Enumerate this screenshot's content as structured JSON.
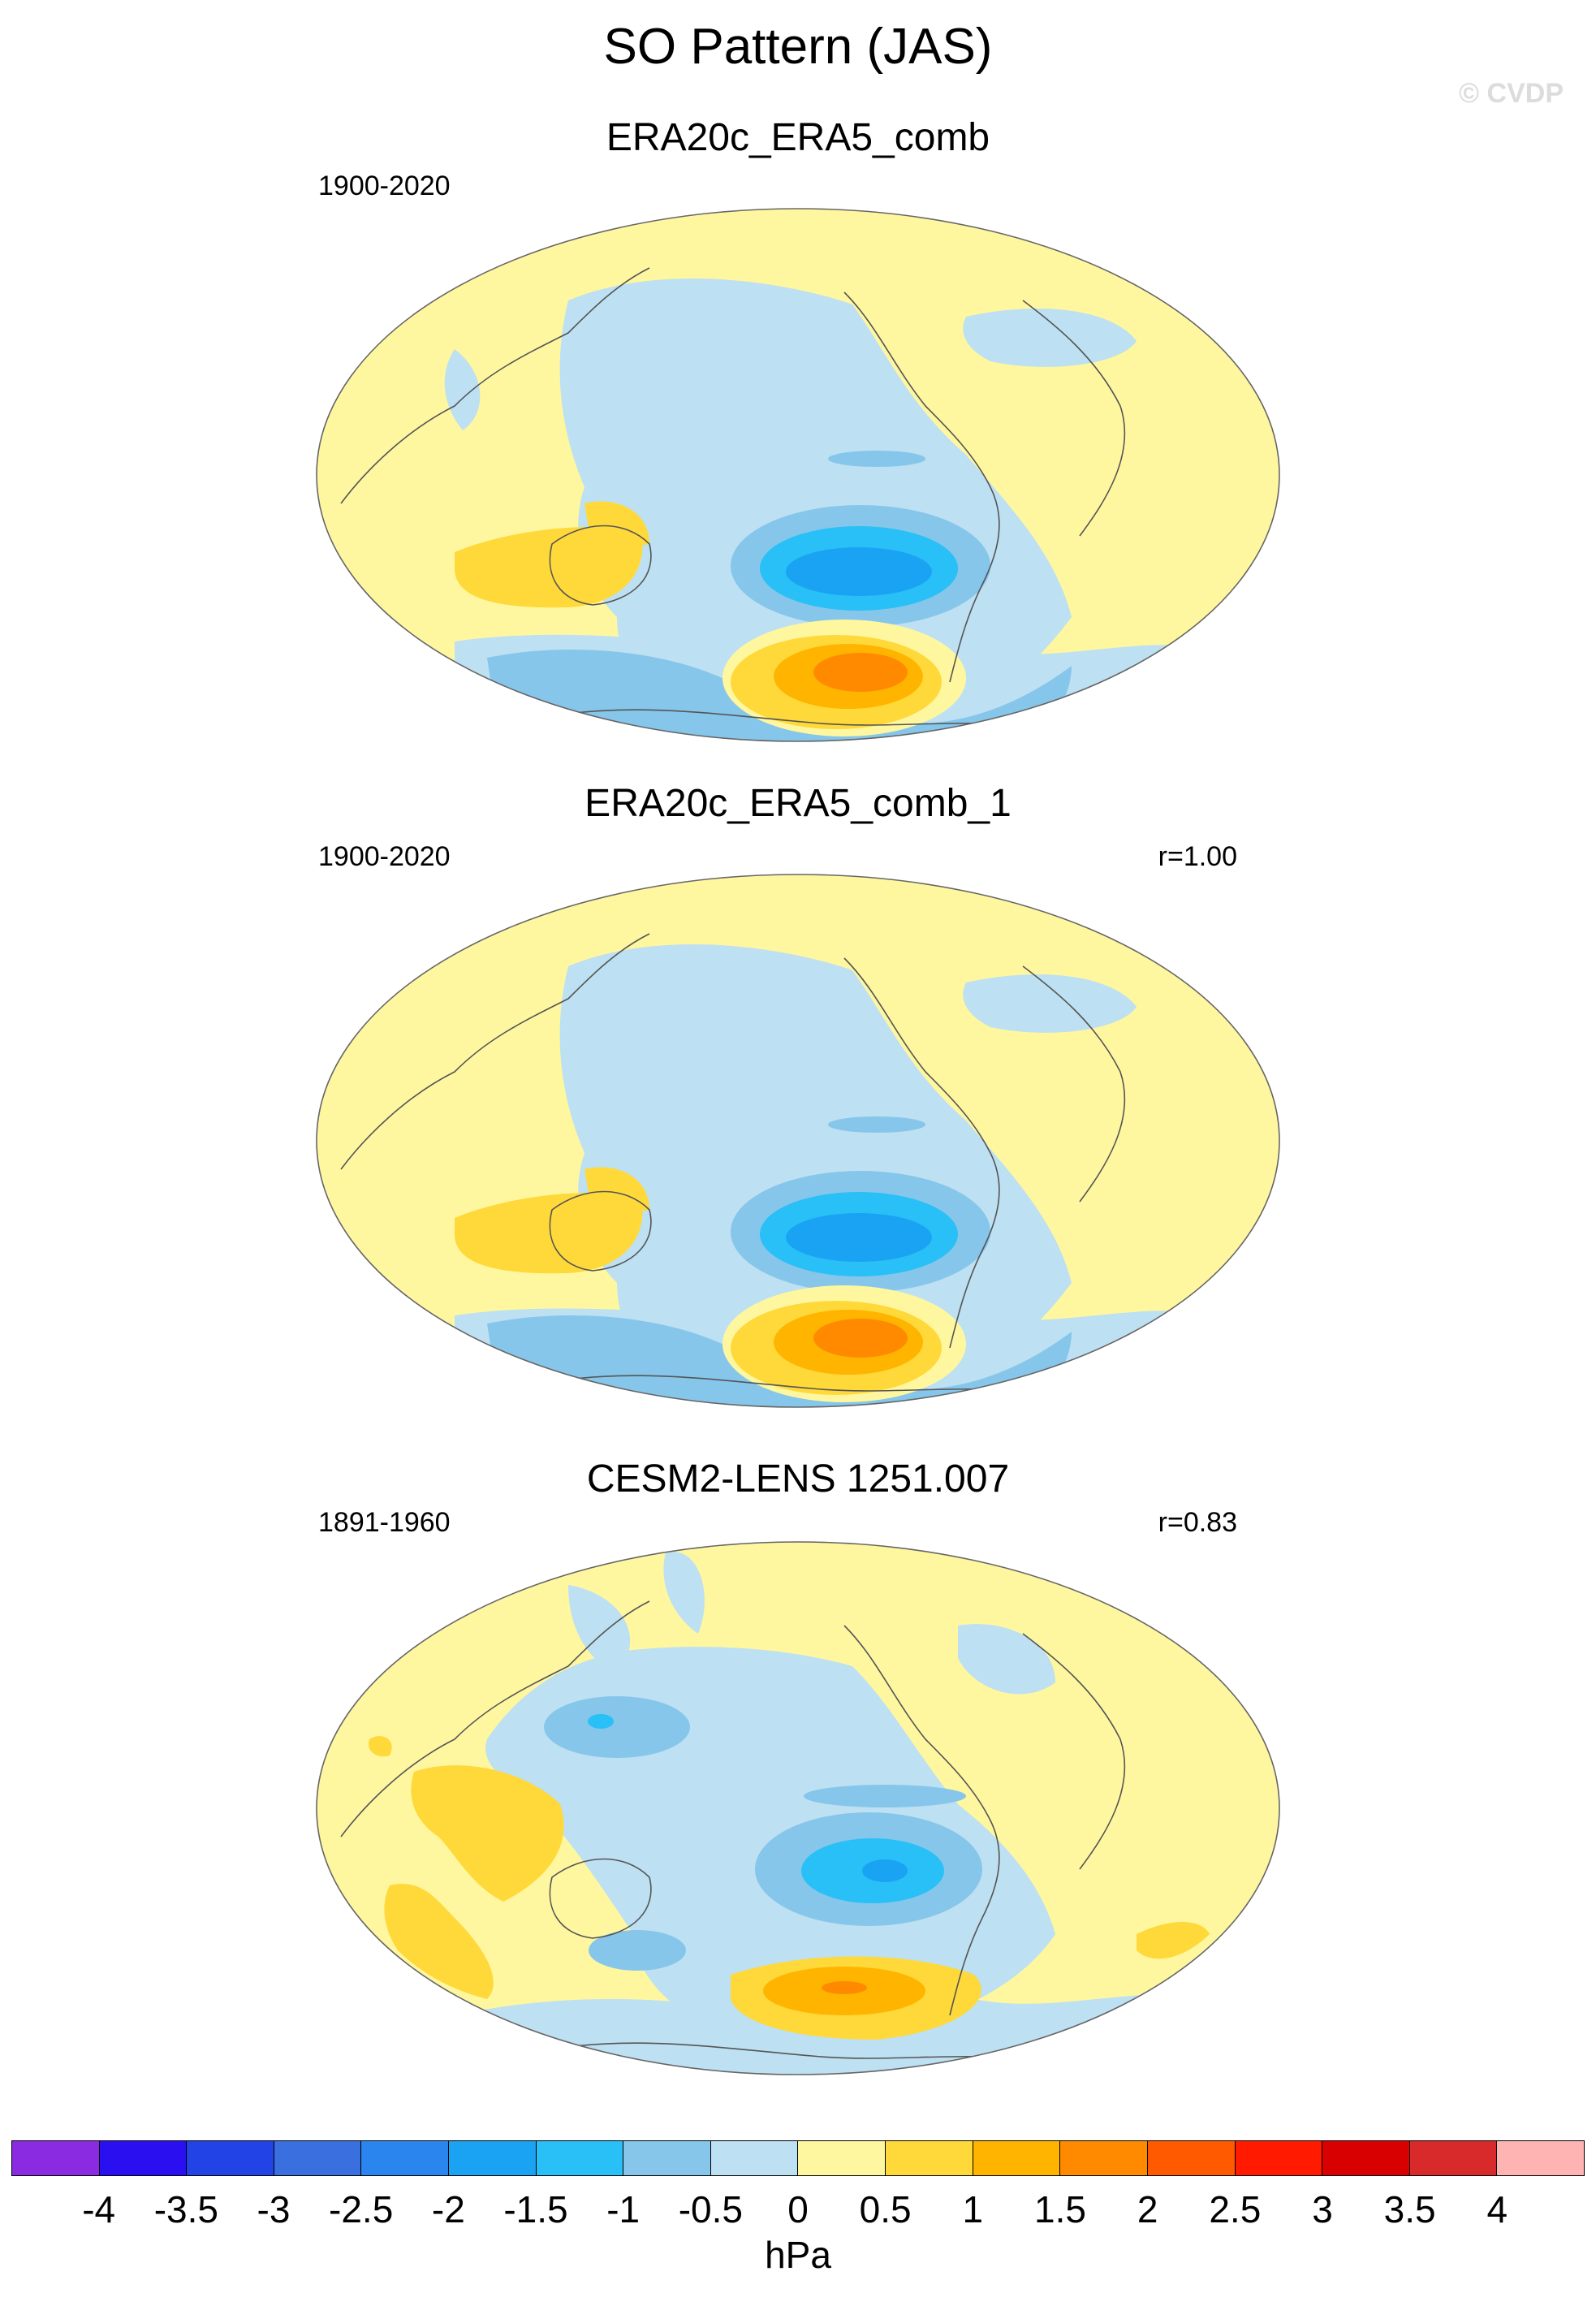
{
  "title": "SO Pattern (JAS)",
  "watermark": "© CVDP",
  "panels": [
    {
      "title": "ERA20c_ERA5_comb",
      "period": "1900-2020",
      "correlation": ""
    },
    {
      "title": "ERA20c_ERA5_comb_1",
      "period": "1900-2020",
      "correlation": "r=1.00"
    },
    {
      "title": "CESM2-LENS 1251.007",
      "period": "1891-1960",
      "correlation": "r=0.83"
    }
  ],
  "colorbar": {
    "unit": "hPa",
    "labels": [
      "-4",
      "-3.5",
      "-3",
      "-2.5",
      "-2",
      "-1.5",
      "-1",
      "-0.5",
      "0",
      "0.5",
      "1",
      "1.5",
      "2",
      "2.5",
      "3",
      "3.5",
      "4"
    ],
    "colors": [
      "#8a2be2",
      "#2a10f0",
      "#2244e6",
      "#3a6fe0",
      "#2a86ee",
      "#1aa3f2",
      "#28c0f6",
      "#86c6ea",
      "#bde0f2",
      "#fff7a0",
      "#ffd93a",
      "#ffb400",
      "#ff8a00",
      "#ff5a00",
      "#ff1a00",
      "#d80000",
      "#d82a2a",
      "#ffb4b4"
    ]
  }
}
